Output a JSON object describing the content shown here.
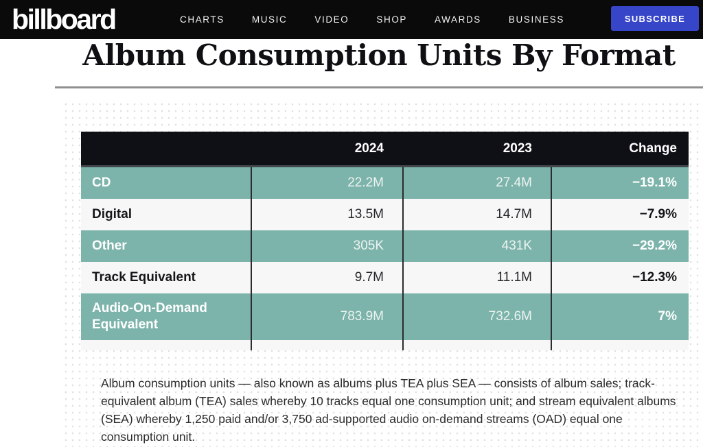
{
  "topbar": {
    "logo": "billboard",
    "nav": [
      "CHARTS",
      "MUSIC",
      "VIDEO",
      "SHOP",
      "AWARDS",
      "BUSINESS"
    ],
    "subscribe_label": "SUBSCRIBE"
  },
  "page": {
    "title": "Album Consumption Units By Format"
  },
  "table": {
    "columns": [
      "",
      "2024",
      "2023",
      "Change"
    ],
    "rows": [
      {
        "label": "CD",
        "y2024": "22.2M",
        "y2023": "27.4M",
        "change": "−19.1%"
      },
      {
        "label": "Digital",
        "y2024": "13.5M",
        "y2023": "14.7M",
        "change": "−7.9%"
      },
      {
        "label": "Other",
        "y2024": "305K",
        "y2023": "431K",
        "change": "−29.2%"
      },
      {
        "label": "Track Equivalent",
        "y2024": "9.7M",
        "y2023": "11.1M",
        "change": "−12.3%"
      },
      {
        "label": "Audio-On-Demand Equivalent",
        "y2024": "783.9M",
        "y2023": "732.6M",
        "change": "7%"
      }
    ]
  },
  "footnote": {
    "text": "Album consumption units — also known as albums plus TEA plus SEA — consists of album sales; track-equivalent album (TEA) sales whereby 10 tracks equal one consumption unit; and stream equivalent albums (SEA) whereby 1,250 paid and/or 3,750 ad-supported audio on-demand streams (OAD) equal one consumption unit."
  },
  "colors": {
    "bar-bg": "#0a0a0a",
    "subscribe-bg": "#3745c9",
    "header-bg": "#0f1016",
    "teal": "#7cb4ab",
    "light": "#f7f7f7",
    "divider": "#2a2c2e"
  }
}
